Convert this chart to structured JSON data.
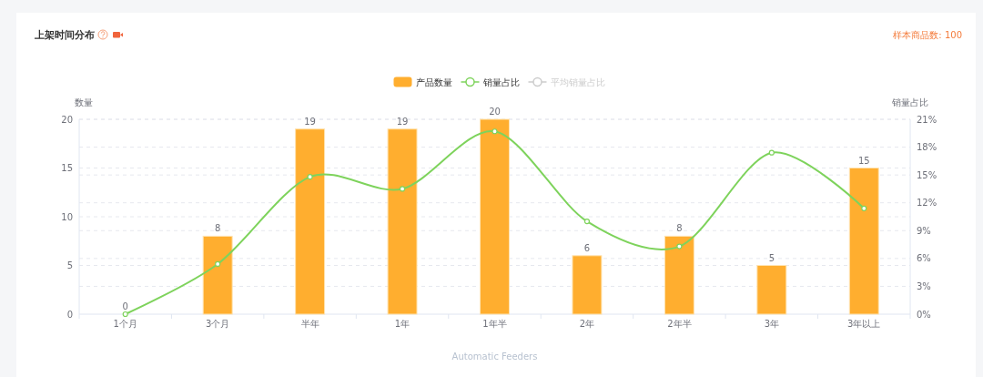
{
  "chart_data": {
    "type": "bar",
    "title": "上架时间分布",
    "annotations": [
      "样本商品数: 100"
    ],
    "xlabel": "Automatic Feeders",
    "ylabel": "数量",
    "y2label": "销量占比",
    "categories": [
      "1个月",
      "3个月",
      "半年",
      "1年",
      "1年半",
      "2年",
      "2年半",
      "3年",
      "3年以上"
    ],
    "series": [
      {
        "name": "产品数量",
        "color": "#ffae2f",
        "values": [
          0,
          8,
          19,
          19,
          20,
          6,
          8,
          5,
          15
        ],
        "data_labels": true
      },
      {
        "name": "销量占比",
        "type": "line",
        "axis": "y2",
        "color": "#7ed35c",
        "values": [
          0,
          5.4,
          14.8,
          13.5,
          19.7,
          10.0,
          7.3,
          17.4,
          11.4
        ]
      },
      {
        "name": "平均销量占比",
        "type": "line",
        "axis": "y2",
        "color": "#cccccc",
        "values": [
          null,
          null,
          null,
          null,
          null,
          null,
          null,
          null,
          null
        ]
      }
    ],
    "ylim": [
      0,
      20
    ],
    "yticks": [
      0,
      5,
      10,
      15,
      20
    ],
    "y2lim": [
      0,
      21
    ],
    "y2ticks": [
      {
        "value": 0,
        "label": "0%"
      },
      {
        "value": 3,
        "label": "3%"
      },
      {
        "value": 6,
        "label": "6%"
      },
      {
        "value": 9,
        "label": "9%"
      },
      {
        "value": 12,
        "label": "12%"
      },
      {
        "value": 15,
        "label": "15%"
      },
      {
        "value": 18,
        "label": "18%"
      },
      {
        "value": 21,
        "label": "21%"
      }
    ],
    "grid": "y",
    "legend": "top",
    "marker": "circle"
  }
}
